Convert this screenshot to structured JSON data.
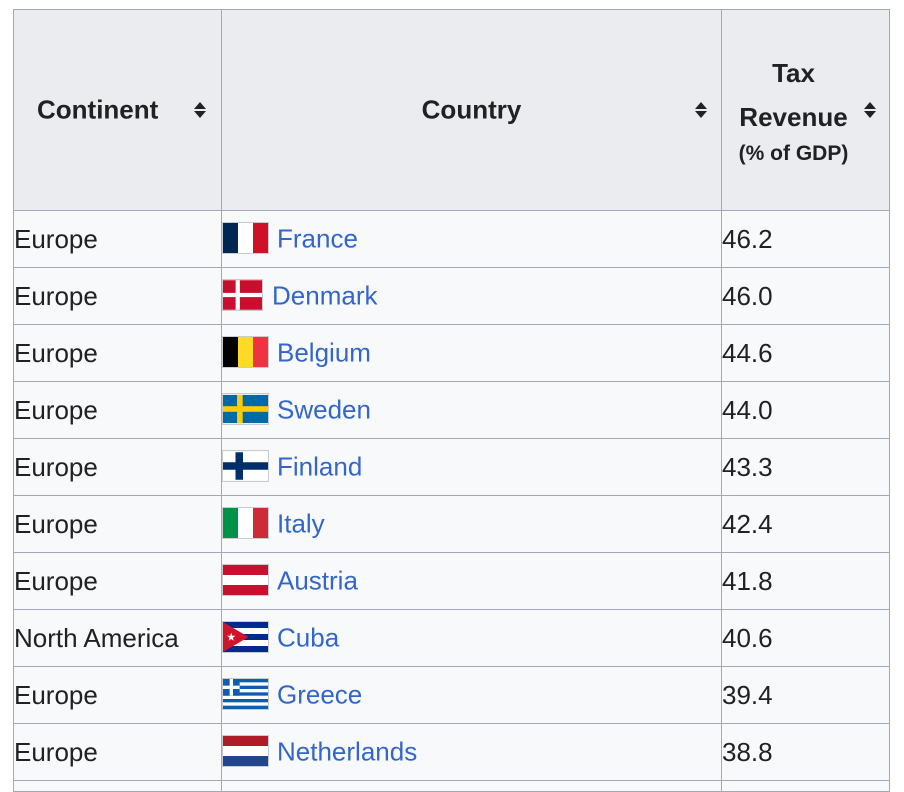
{
  "table": {
    "headers": {
      "continent": "Continent",
      "country": "Country",
      "tax_line1": "Tax",
      "tax_line2": "Revenue",
      "tax_line3": "(% of GDP)"
    },
    "rows": [
      {
        "continent": "Europe",
        "country": "France",
        "flag": "france-flag-icon",
        "value": "46.2"
      },
      {
        "continent": "Europe",
        "country": "Denmark",
        "flag": "denmark-flag-icon",
        "value": "46.0"
      },
      {
        "continent": "Europe",
        "country": "Belgium",
        "flag": "belgium-flag-icon",
        "value": "44.6"
      },
      {
        "continent": "Europe",
        "country": "Sweden",
        "flag": "sweden-flag-icon",
        "value": "44.0"
      },
      {
        "continent": "Europe",
        "country": "Finland",
        "flag": "finland-flag-icon",
        "value": "43.3"
      },
      {
        "continent": "Europe",
        "country": "Italy",
        "flag": "italy-flag-icon",
        "value": "42.4"
      },
      {
        "continent": "Europe",
        "country": "Austria",
        "flag": "austria-flag-icon",
        "value": "41.8"
      },
      {
        "continent": "North America",
        "country": "Cuba",
        "flag": "cuba-flag-icon",
        "value": "40.6"
      },
      {
        "continent": "Europe",
        "country": "Greece",
        "flag": "greece-flag-icon",
        "value": "39.4"
      },
      {
        "continent": "Europe",
        "country": "Netherlands",
        "flag": "netherlands-flag-icon",
        "value": "38.8"
      }
    ]
  },
  "colors": {
    "link": "#3366cc",
    "header_bg": "#eaecf0",
    "cell_bg": "#f8f9fa",
    "border": "#a2a9b1"
  }
}
